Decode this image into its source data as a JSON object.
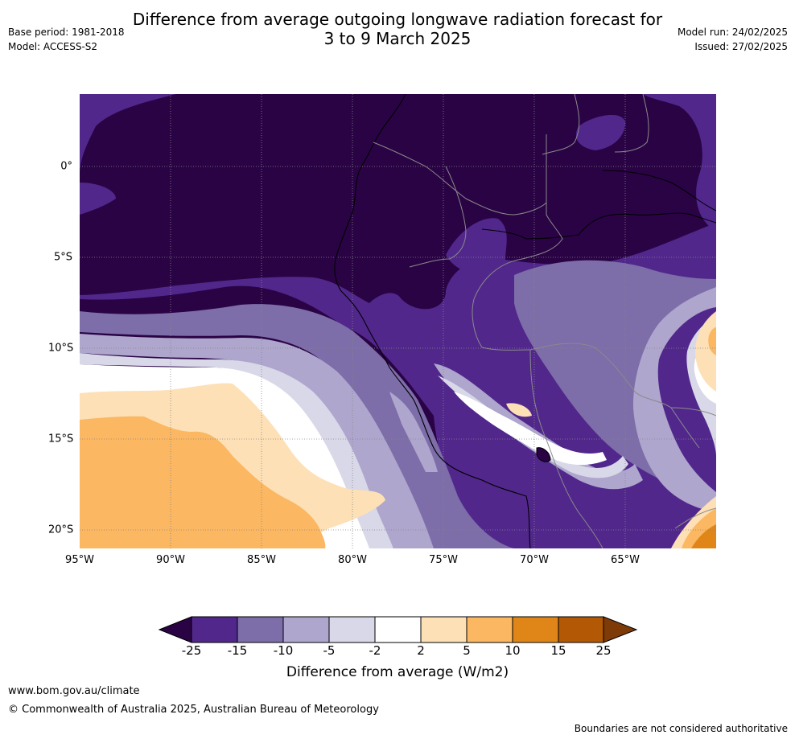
{
  "title_line1": "Difference from average outgoing longwave radiation forecast for",
  "title_line2": "3 to 9 March 2025",
  "base_period": "Base period: 1981-2018",
  "model": "Model: ACCESS-S2",
  "model_run": "Model run: 24/02/2025",
  "issued": "Issued: 27/02/2025",
  "lon_labels": [
    "95°W",
    "90°W",
    "85°W",
    "80°W",
    "75°W",
    "70°W",
    "65°W"
  ],
  "lat_labels": [
    "0°",
    "5°S",
    "10°S",
    "15°S",
    "20°S"
  ],
  "colorbar": {
    "title": "Difference from average (W/m2)",
    "ticks": [
      "-25",
      "-15",
      "-10",
      "-5",
      "-2",
      "2",
      "5",
      "10",
      "15",
      "25"
    ],
    "colors": {
      "lt_neg25": "#2a0345",
      "neg25_neg15": "#51278c",
      "neg15_neg10": "#7d6da9",
      "neg10_neg5": "#aea6cd",
      "neg5_neg2": "#d8d8e8",
      "neg2_2": "#ffffff",
      "2_5": "#fde0b6",
      "5_10": "#fbb761",
      "10_15": "#e08618",
      "15_25": "#b35905",
      "gt_25": "#7e3b08"
    }
  },
  "footer_url": "www.bom.gov.au/climate",
  "footer_copyright": "© Commonwealth of Australia 2025, Australian Bureau of Meteorology",
  "footer_disclaimer": "Boundaries are not considered authoritative"
}
